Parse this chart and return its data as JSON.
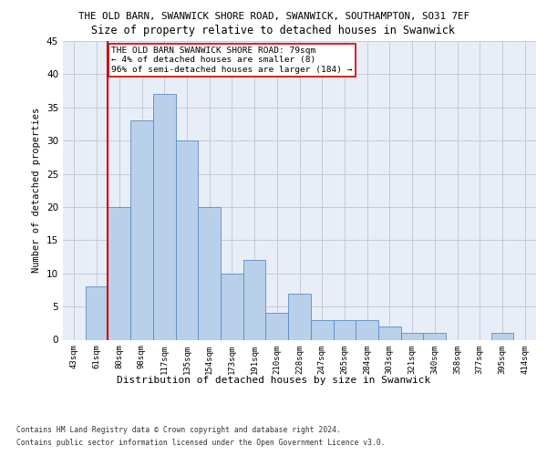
{
  "title1": "THE OLD BARN, SWANWICK SHORE ROAD, SWANWICK, SOUTHAMPTON, SO31 7EF",
  "title2": "Size of property relative to detached houses in Swanwick",
  "xlabel": "Distribution of detached houses by size in Swanwick",
  "ylabel": "Number of detached properties",
  "categories": [
    "43sqm",
    "61sqm",
    "80sqm",
    "98sqm",
    "117sqm",
    "135sqm",
    "154sqm",
    "173sqm",
    "191sqm",
    "210sqm",
    "228sqm",
    "247sqm",
    "265sqm",
    "284sqm",
    "303sqm",
    "321sqm",
    "340sqm",
    "358sqm",
    "377sqm",
    "395sqm",
    "414sqm"
  ],
  "values": [
    0,
    8,
    20,
    33,
    37,
    30,
    20,
    10,
    12,
    4,
    7,
    3,
    3,
    3,
    2,
    1,
    1,
    0,
    0,
    1,
    0
  ],
  "bar_color": "#b8d0ea",
  "bar_edge_color": "#5b8cc8",
  "vline_color": "#cc0000",
  "annotation_text": "THE OLD BARN SWANWICK SHORE ROAD: 79sqm\n← 4% of detached houses are smaller (8)\n96% of semi-detached houses are larger (184) →",
  "annotation_box_color": "#ffffff",
  "annotation_box_edge": "#cc0000",
  "ylim": [
    0,
    45
  ],
  "yticks": [
    0,
    5,
    10,
    15,
    20,
    25,
    30,
    35,
    40,
    45
  ],
  "footer1": "Contains HM Land Registry data © Crown copyright and database right 2024.",
  "footer2": "Contains public sector information licensed under the Open Government Licence v3.0.",
  "bg_color": "#e8eef8",
  "grid_color": "#c8c8d8",
  "title1_fontsize": 7.8,
  "title2_fontsize": 8.5,
  "ylabel_fontsize": 7.5,
  "xlabel_fontsize": 8.0,
  "tick_fontsize": 6.5,
  "ytick_fontsize": 7.5,
  "annot_fontsize": 6.8,
  "footer_fontsize": 5.8
}
